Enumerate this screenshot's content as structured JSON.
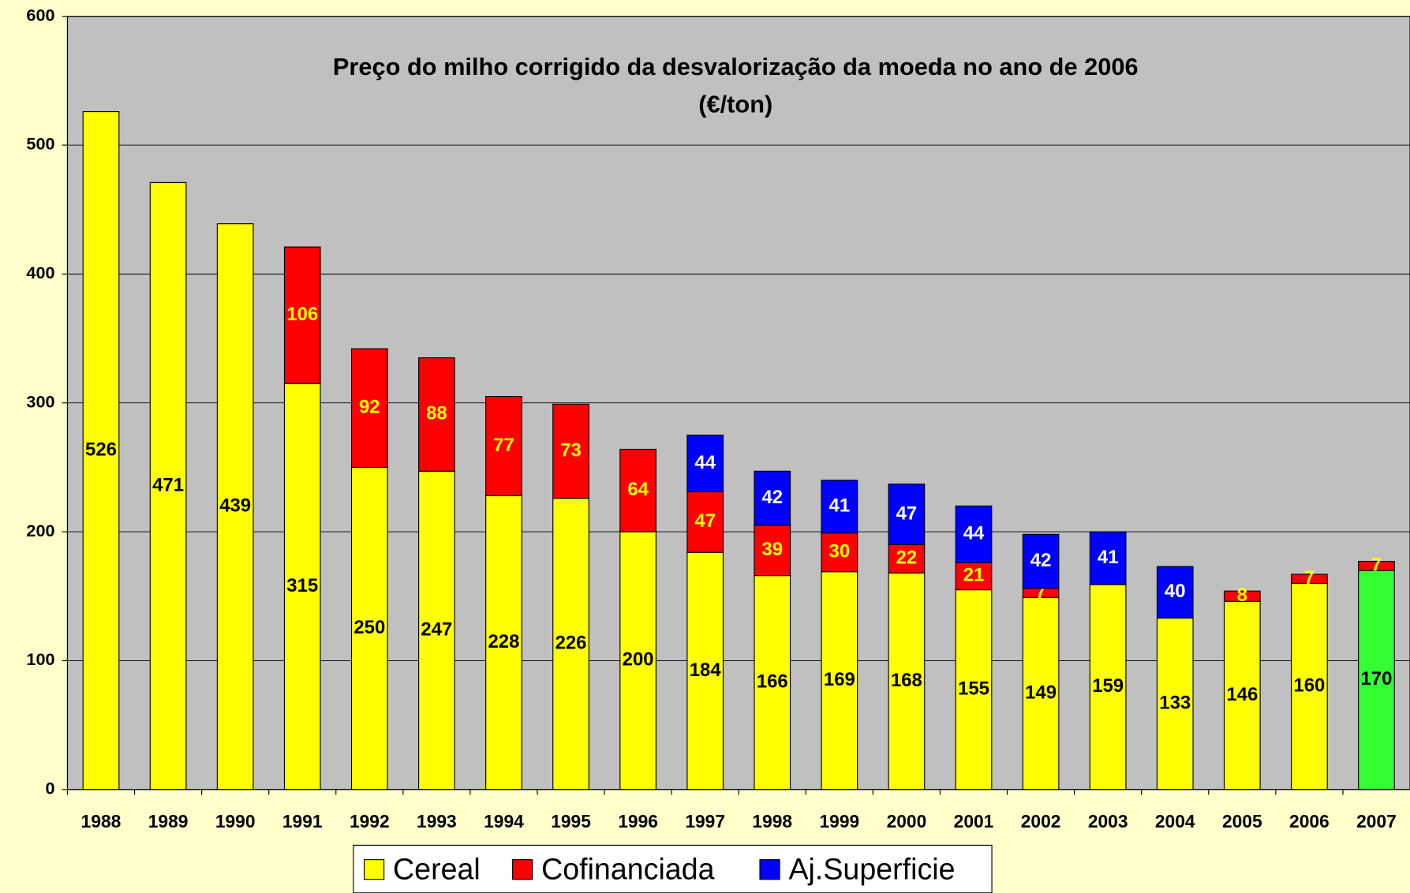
{
  "chart_data": {
    "type": "stacked_bar",
    "title": "Preço do milho corrigido da desvalorização da moeda no ano de  2006",
    "subtitle": "(€/ton)",
    "categories": [
      "1988",
      "1989",
      "1990",
      "1991",
      "1992",
      "1993",
      "1994",
      "1995",
      "1996",
      "1997",
      "1998",
      "1999",
      "2000",
      "2001",
      "2002",
      "2003",
      "2004",
      "2005",
      "2006",
      "2007"
    ],
    "series": [
      {
        "name": "Cereal",
        "color": "#ffff00",
        "label_color": "#000000",
        "colors": [
          "#ffff00",
          "#ffff00",
          "#ffff00",
          "#ffff00",
          "#ffff00",
          "#ffff00",
          "#ffff00",
          "#ffff00",
          "#ffff00",
          "#ffff00",
          "#ffff00",
          "#ffff00",
          "#ffff00",
          "#ffff00",
          "#ffff00",
          "#ffff00",
          "#ffff00",
          "#ffff00",
          "#ffff00",
          "#33ff33"
        ],
        "values": [
          526,
          471,
          439,
          315,
          250,
          247,
          228,
          226,
          200,
          184,
          166,
          169,
          168,
          155,
          149,
          159,
          133,
          146,
          160,
          170
        ]
      },
      {
        "name": "Cofinanciada",
        "color": "#ff0000",
        "label_color": "#ffff00",
        "values": [
          null,
          null,
          null,
          106,
          92,
          88,
          77,
          73,
          64,
          47,
          39,
          30,
          22,
          21,
          7,
          null,
          null,
          8,
          7,
          7
        ]
      },
      {
        "name": "Aj.Superficie",
        "color": "#0000ff",
        "label_color": "#ffffff",
        "values": [
          null,
          null,
          null,
          null,
          null,
          null,
          null,
          null,
          null,
          44,
          42,
          41,
          47,
          44,
          42,
          41,
          40,
          null,
          null,
          null
        ]
      }
    ],
    "ylim": [
      0,
      600
    ],
    "yticks": [
      0,
      100,
      200,
      300,
      400,
      500,
      600
    ],
    "grid": true,
    "legend": "bottom",
    "plot_background": "#c0c0c0"
  }
}
